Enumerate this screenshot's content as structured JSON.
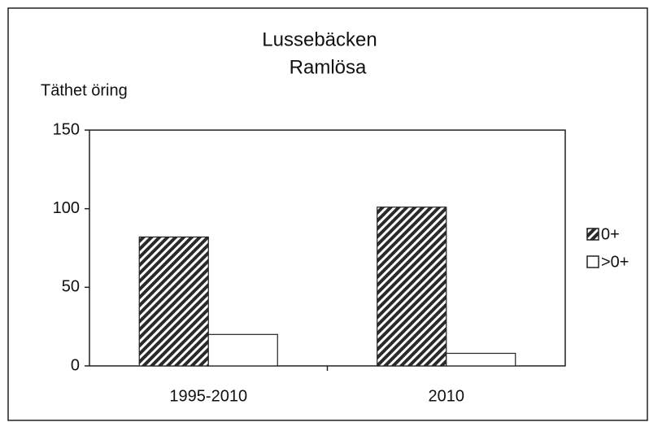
{
  "chart_data": {
    "type": "bar",
    "title": "Lussebäcken",
    "subtitle": "Ramlösa",
    "y_label": "Täthet öring",
    "categories": [
      "1995-2010",
      "2010"
    ],
    "series": [
      {
        "name": "0+",
        "color": "#2a2a2a",
        "pattern": "diagonal",
        "values": [
          82,
          101
        ]
      },
      {
        "name": ">0+",
        "color": "#ffffff",
        "values": [
          20,
          8
        ]
      }
    ],
    "ylim": [
      0,
      150
    ],
    "yticks": [
      0,
      50,
      100,
      150
    ],
    "grid": false,
    "legend": "right"
  }
}
